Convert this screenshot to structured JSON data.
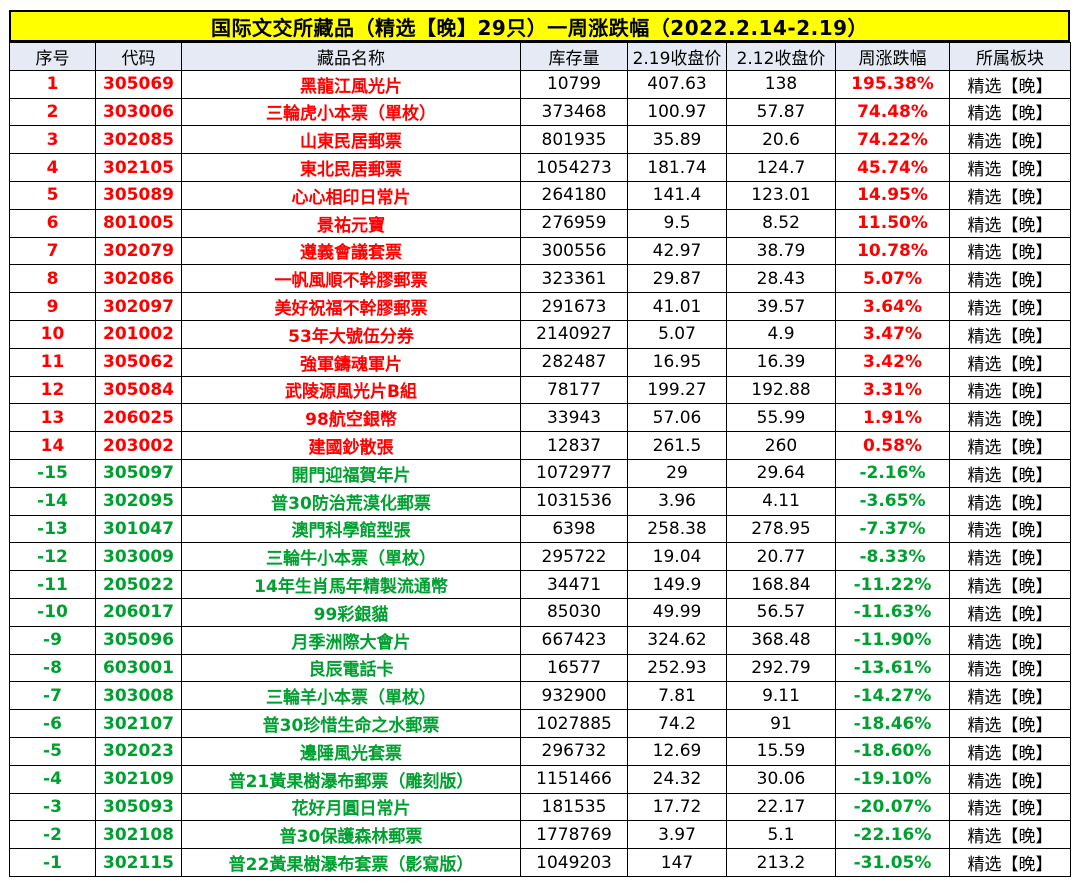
{
  "title": "国际文交所藏品（精选【晚】29只）一周涨跌幅（2022.2.14-2.19）",
  "colors": {
    "header_bg": "#e6eaf4",
    "title_bg": "#ffff00",
    "up": "#ff0000",
    "down": "#00a030"
  },
  "columns": [
    "序号",
    "代码",
    "藏品名称",
    "库存量",
    "2.19收盘价",
    "2.12收盘价",
    "周涨跌幅",
    "所属板块"
  ],
  "rows": [
    {
      "no": "1",
      "code": "305069",
      "name": "黑龍江風光片",
      "stock": "10799",
      "close_219": "407.63",
      "close_212": "138",
      "change": "195.38%",
      "board": "精选【晚】",
      "dir": "up"
    },
    {
      "no": "2",
      "code": "303006",
      "name": "三輪虎小本票（單枚）",
      "stock": "373468",
      "close_219": "100.97",
      "close_212": "57.87",
      "change": "74.48%",
      "board": "精选【晚】",
      "dir": "up"
    },
    {
      "no": "3",
      "code": "302085",
      "name": "山東民居郵票",
      "stock": "801935",
      "close_219": "35.89",
      "close_212": "20.6",
      "change": "74.22%",
      "board": "精选【晚】",
      "dir": "up"
    },
    {
      "no": "4",
      "code": "302105",
      "name": "東北民居郵票",
      "stock": "1054273",
      "close_219": "181.74",
      "close_212": "124.7",
      "change": "45.74%",
      "board": "精选【晚】",
      "dir": "up"
    },
    {
      "no": "5",
      "code": "305089",
      "name": "心心相印日常片",
      "stock": "264180",
      "close_219": "141.4",
      "close_212": "123.01",
      "change": "14.95%",
      "board": "精选【晚】",
      "dir": "up"
    },
    {
      "no": "6",
      "code": "801005",
      "name": "景祐元寶",
      "stock": "276959",
      "close_219": "9.5",
      "close_212": "8.52",
      "change": "11.50%",
      "board": "精选【晚】",
      "dir": "up"
    },
    {
      "no": "7",
      "code": "302079",
      "name": "遵義會議套票",
      "stock": "300556",
      "close_219": "42.97",
      "close_212": "38.79",
      "change": "10.78%",
      "board": "精选【晚】",
      "dir": "up"
    },
    {
      "no": "8",
      "code": "302086",
      "name": "一帆風順不幹膠郵票",
      "stock": "323361",
      "close_219": "29.87",
      "close_212": "28.43",
      "change": "5.07%",
      "board": "精选【晚】",
      "dir": "up"
    },
    {
      "no": "9",
      "code": "302097",
      "name": "美好祝福不幹膠郵票",
      "stock": "291673",
      "close_219": "41.01",
      "close_212": "39.57",
      "change": "3.64%",
      "board": "精选【晚】",
      "dir": "up"
    },
    {
      "no": "10",
      "code": "201002",
      "name": "53年大號伍分券",
      "stock": "2140927",
      "close_219": "5.07",
      "close_212": "4.9",
      "change": "3.47%",
      "board": "精选【晚】",
      "dir": "up"
    },
    {
      "no": "11",
      "code": "305062",
      "name": "強軍鑄魂軍片",
      "stock": "282487",
      "close_219": "16.95",
      "close_212": "16.39",
      "change": "3.42%",
      "board": "精选【晚】",
      "dir": "up"
    },
    {
      "no": "12",
      "code": "305084",
      "name": "武陵源風光片B組",
      "stock": "78177",
      "close_219": "199.27",
      "close_212": "192.88",
      "change": "3.31%",
      "board": "精选【晚】",
      "dir": "up"
    },
    {
      "no": "13",
      "code": "206025",
      "name": "98航空銀幣",
      "stock": "33943",
      "close_219": "57.06",
      "close_212": "55.99",
      "change": "1.91%",
      "board": "精选【晚】",
      "dir": "up"
    },
    {
      "no": "14",
      "code": "203002",
      "name": "建國鈔散張",
      "stock": "12837",
      "close_219": "261.5",
      "close_212": "260",
      "change": "0.58%",
      "board": "精选【晚】",
      "dir": "up"
    },
    {
      "no": "-15",
      "code": "305097",
      "name": "開門迎福賀年片",
      "stock": "1072977",
      "close_219": "29",
      "close_212": "29.64",
      "change": "-2.16%",
      "board": "精选【晚】",
      "dir": "down"
    },
    {
      "no": "-14",
      "code": "302095",
      "name": "普30防治荒漠化郵票",
      "stock": "1031536",
      "close_219": "3.96",
      "close_212": "4.11",
      "change": "-3.65%",
      "board": "精选【晚】",
      "dir": "down"
    },
    {
      "no": "-13",
      "code": "301047",
      "name": "澳門科學館型張",
      "stock": "6398",
      "close_219": "258.38",
      "close_212": "278.95",
      "change": "-7.37%",
      "board": "精选【晚】",
      "dir": "down"
    },
    {
      "no": "-12",
      "code": "303009",
      "name": "三輪牛小本票（單枚）",
      "stock": "295722",
      "close_219": "19.04",
      "close_212": "20.77",
      "change": "-8.33%",
      "board": "精选【晚】",
      "dir": "down"
    },
    {
      "no": "-11",
      "code": "205022",
      "name": "14年生肖馬年精製流通幣",
      "stock": "34471",
      "close_219": "149.9",
      "close_212": "168.84",
      "change": "-11.22%",
      "board": "精选【晚】",
      "dir": "down"
    },
    {
      "no": "-10",
      "code": "206017",
      "name": "99彩銀貓",
      "stock": "85030",
      "close_219": "49.99",
      "close_212": "56.57",
      "change": "-11.63%",
      "board": "精选【晚】",
      "dir": "down"
    },
    {
      "no": "-9",
      "code": "305096",
      "name": "月季洲際大會片",
      "stock": "667423",
      "close_219": "324.62",
      "close_212": "368.48",
      "change": "-11.90%",
      "board": "精选【晚】",
      "dir": "down"
    },
    {
      "no": "-8",
      "code": "603001",
      "name": "良辰電話卡",
      "stock": "16577",
      "close_219": "252.93",
      "close_212": "292.79",
      "change": "-13.61%",
      "board": "精选【晚】",
      "dir": "down"
    },
    {
      "no": "-7",
      "code": "303008",
      "name": "三輪羊小本票（單枚）",
      "stock": "932900",
      "close_219": "7.81",
      "close_212": "9.11",
      "change": "-14.27%",
      "board": "精选【晚】",
      "dir": "down"
    },
    {
      "no": "-6",
      "code": "302107",
      "name": "普30珍惜生命之水郵票",
      "stock": "1027885",
      "close_219": "74.2",
      "close_212": "91",
      "change": "-18.46%",
      "board": "精选【晚】",
      "dir": "down"
    },
    {
      "no": "-5",
      "code": "302023",
      "name": "邊陲風光套票",
      "stock": "296732",
      "close_219": "12.69",
      "close_212": "15.59",
      "change": "-18.60%",
      "board": "精选【晚】",
      "dir": "down"
    },
    {
      "no": "-4",
      "code": "302109",
      "name": "普21黃果樹瀑布郵票（雕刻版）",
      "stock": "1151466",
      "close_219": "24.32",
      "close_212": "30.06",
      "change": "-19.10%",
      "board": "精选【晚】",
      "dir": "down"
    },
    {
      "no": "-3",
      "code": "305093",
      "name": "花好月圓日常片",
      "stock": "181535",
      "close_219": "17.72",
      "close_212": "22.17",
      "change": "-20.07%",
      "board": "精选【晚】",
      "dir": "down"
    },
    {
      "no": "-2",
      "code": "302108",
      "name": "普30保護森林郵票",
      "stock": "1778769",
      "close_219": "3.97",
      "close_212": "5.1",
      "change": "-22.16%",
      "board": "精选【晚】",
      "dir": "down"
    },
    {
      "no": "-1",
      "code": "302115",
      "name": "普22黃果樹瀑布套票（影寫版）",
      "stock": "1049203",
      "close_219": "147",
      "close_212": "213.2",
      "change": "-31.05%",
      "board": "精选【晚】",
      "dir": "down"
    }
  ]
}
